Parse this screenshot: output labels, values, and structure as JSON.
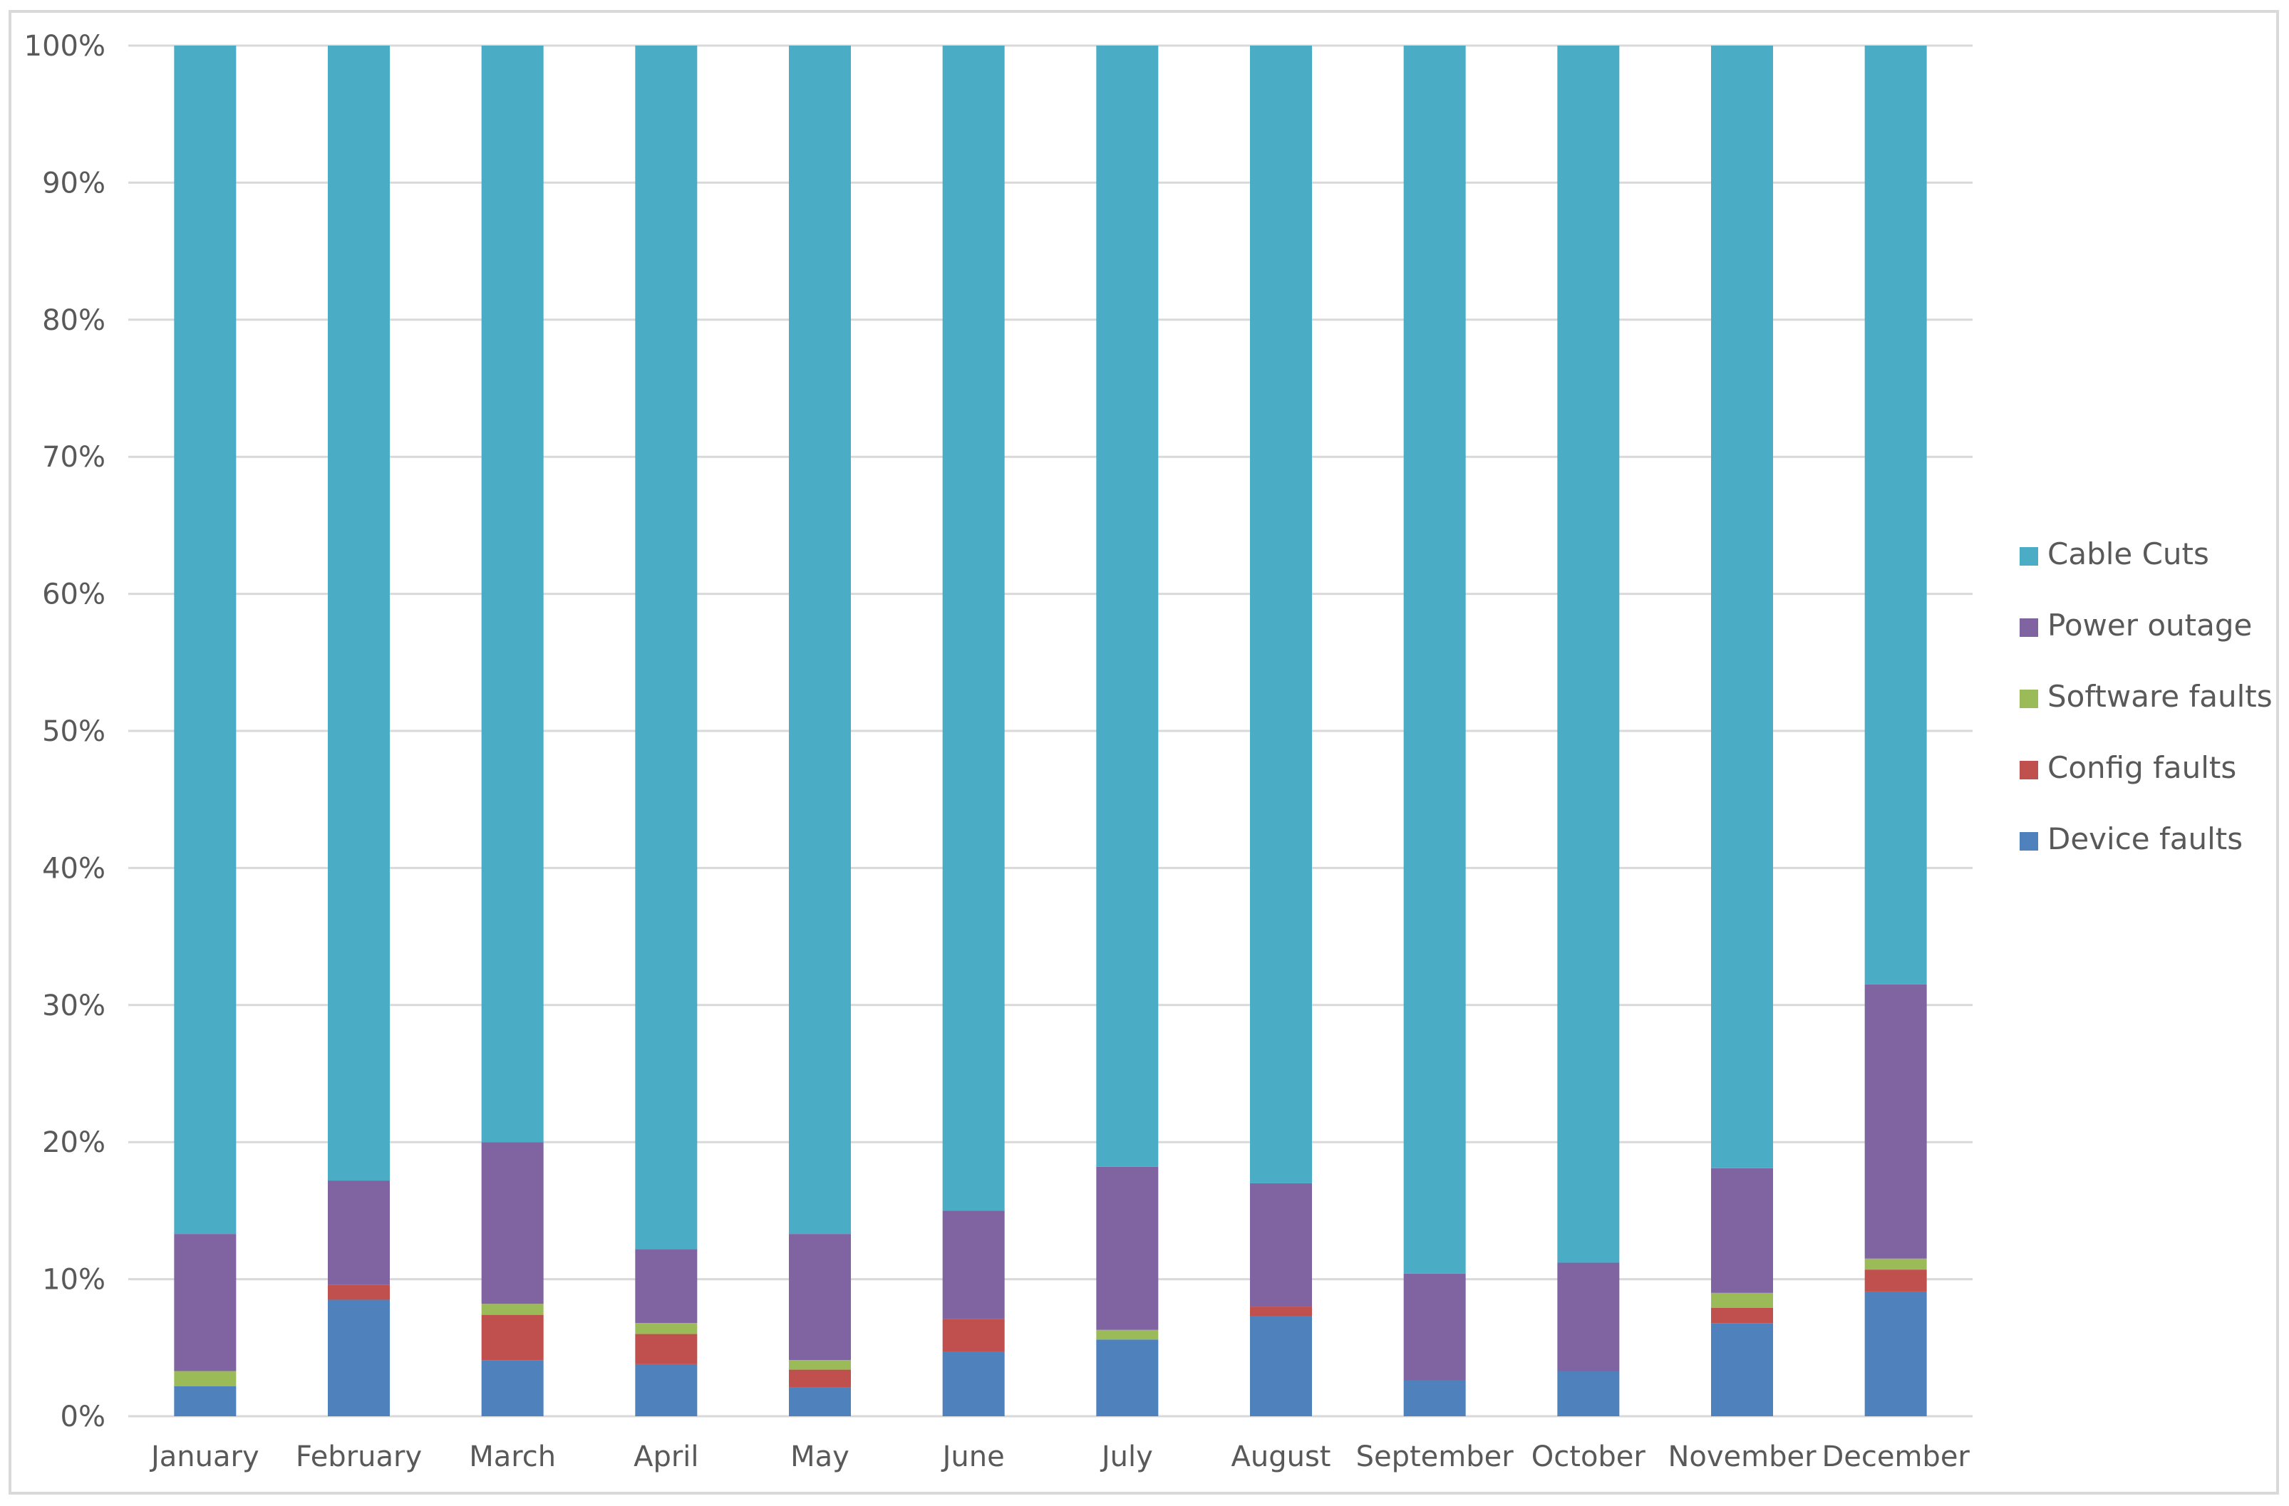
{
  "chart_data": {
    "type": "bar",
    "stacked": "percent",
    "title": "",
    "xlabel": "",
    "ylabel": "",
    "ylim": [
      0,
      100
    ],
    "y_ticks": [
      "0%",
      "10%",
      "20%",
      "30%",
      "40%",
      "50%",
      "60%",
      "70%",
      "80%",
      "90%",
      "100%"
    ],
    "grid": true,
    "legend_position": "right",
    "categories": [
      "January",
      "February",
      "March",
      "April",
      "May",
      "June",
      "July",
      "August",
      "September",
      "October",
      "November",
      "December"
    ],
    "series": [
      {
        "name": "Device faults",
        "color": "#4f81bd",
        "values": [
          2.2,
          8.5,
          4.1,
          3.8,
          2.1,
          4.7,
          5.6,
          7.3,
          2.6,
          3.3,
          6.8,
          9.1
        ]
      },
      {
        "name": "Config faults",
        "color": "#c0504d",
        "values": [
          0.0,
          1.1,
          3.3,
          2.2,
          1.3,
          2.4,
          0.0,
          0.7,
          0.0,
          0.0,
          1.1,
          1.6
        ]
      },
      {
        "name": "Software faults",
        "color": "#9bbb59",
        "values": [
          1.1,
          0.0,
          0.8,
          0.8,
          0.7,
          0.0,
          0.7,
          0.0,
          0.0,
          0.0,
          1.1,
          0.8
        ]
      },
      {
        "name": "Power outage",
        "color": "#8064a2",
        "values": [
          10.0,
          7.6,
          11.8,
          5.4,
          9.2,
          7.9,
          11.9,
          9.0,
          7.8,
          7.9,
          9.1,
          20.0
        ]
      },
      {
        "name": "Cable Cuts",
        "color": "#4bacc6",
        "values": [
          86.7,
          82.8,
          80.0,
          87.8,
          86.7,
          85.0,
          81.8,
          83.0,
          89.6,
          88.8,
          81.9,
          68.5
        ]
      }
    ]
  }
}
